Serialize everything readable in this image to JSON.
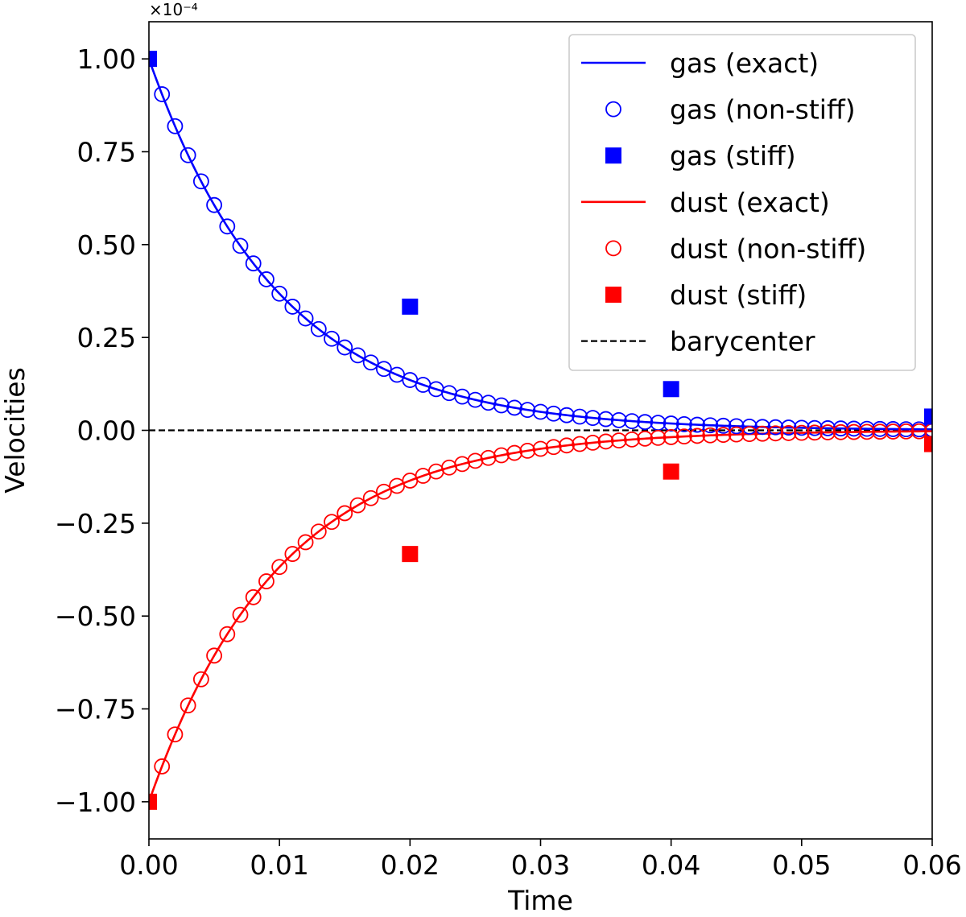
{
  "chart_data": {
    "type": "line",
    "title": "",
    "xlabel": "Time",
    "ylabel": "Velocities",
    "xlim": [
      0.0,
      0.06
    ],
    "ylim": [
      -1.1,
      1.1
    ],
    "y_scale_label": "×10⁻⁴",
    "x_ticks": [
      0.0,
      0.01,
      0.02,
      0.03,
      0.04,
      0.05,
      0.06
    ],
    "x_tick_labels": [
      "0.00",
      "0.01",
      "0.02",
      "0.03",
      "0.04",
      "0.05",
      "0.06"
    ],
    "y_ticks": [
      1.0,
      0.75,
      0.5,
      0.25,
      0.0,
      -0.25,
      -0.5,
      -0.75,
      -1.0
    ],
    "y_tick_labels": [
      "1.00",
      "0.75",
      "0.50",
      "0.25",
      "0.00",
      "−0.25",
      "−0.50",
      "−0.75",
      "−1.00"
    ],
    "legend_position": "top-right",
    "decay_rate": 100,
    "nonstiff_dt": 0.001,
    "colors": {
      "gas": "#0000ff",
      "dust": "#ff0000",
      "barycenter": "#000000"
    },
    "series": [
      {
        "name": "gas (exact)",
        "style": "line",
        "color": "#0000ff",
        "sign": 1
      },
      {
        "name": "gas (non-stiff)",
        "style": "open-circle",
        "color": "#0000ff",
        "sign": 1
      },
      {
        "name": "gas (stiff)",
        "style": "filled-square",
        "color": "#0000ff",
        "x": [
          0.0,
          0.02,
          0.04,
          0.06
        ],
        "y": [
          1.0,
          0.333,
          0.111,
          0.037
        ]
      },
      {
        "name": "dust (exact)",
        "style": "line",
        "color": "#ff0000",
        "sign": -1
      },
      {
        "name": "dust (non-stiff)",
        "style": "open-circle",
        "color": "#ff0000",
        "sign": -1
      },
      {
        "name": "dust (stiff)",
        "style": "filled-square",
        "color": "#ff0000",
        "x": [
          0.0,
          0.02,
          0.04,
          0.06
        ],
        "y": [
          -1.0,
          -0.333,
          -0.111,
          -0.037
        ]
      },
      {
        "name": "barycenter",
        "style": "dashed-line",
        "color": "#000000",
        "y": 0.0
      }
    ]
  }
}
